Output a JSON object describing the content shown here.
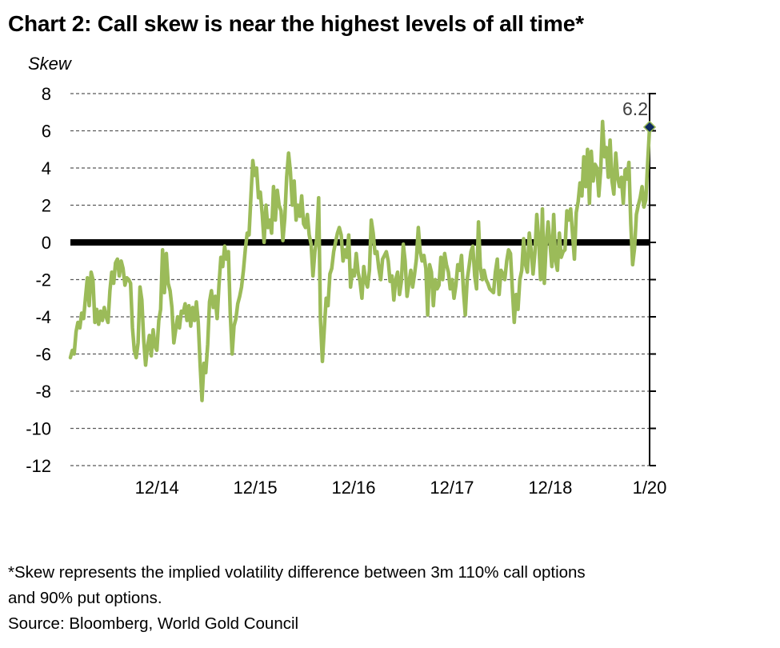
{
  "title": "Chart 2: Call skew is near the highest levels of all time*",
  "footnote_line1": "*Skew represents the implied volatility difference between 3m 110% call options",
  "footnote_line2": "and 90% put options.",
  "source": "Source: Bloomberg, World Gold Council",
  "colors": {
    "series": "#9bbb59",
    "zero_line": "#000000",
    "grid": "#595959",
    "marker": "#0f2a5f"
  },
  "chart_data": {
    "type": "line",
    "title": "Chart 2: Call skew is near the highest levels of all time*",
    "xlabel": "",
    "ylabel": "Skew",
    "ylim": [
      -12,
      8
    ],
    "yticks": [
      "8",
      "6",
      "4",
      "2",
      "0",
      "-2",
      "-4",
      "-6",
      "-8",
      "-10",
      "-12"
    ],
    "ytick_values": [
      8,
      6,
      4,
      2,
      0,
      -2,
      -4,
      -6,
      -8,
      -10,
      -12
    ],
    "xticks": [
      "12/14",
      "12/15",
      "12/16",
      "12/17",
      "12/18",
      "1/20"
    ],
    "xtick_values": [
      2014.92,
      2015.92,
      2016.92,
      2017.92,
      2018.92,
      2019.93
    ],
    "xlim": [
      2014.04,
      2019.93
    ],
    "grid": true,
    "annotation": {
      "label": "6.2",
      "x": 2019.93,
      "y": 6.2
    },
    "series": [
      {
        "name": "Skew",
        "x_start": 2014.04,
        "x_end": 2019.93,
        "values": [
          -6.2,
          -5.8,
          -6.0,
          -4.8,
          -4.3,
          -4.6,
          -3.8,
          -4.1,
          -3.0,
          -1.9,
          -3.4,
          -1.6,
          -2.0,
          -4.3,
          -3.6,
          -4.4,
          -3.7,
          -4.2,
          -3.5,
          -4.0,
          -4.3,
          -2.6,
          -1.6,
          -2.2,
          -1.1,
          -0.9,
          -1.8,
          -1.0,
          -1.4,
          -2.3,
          -1.9,
          -2.0,
          -2.2,
          -4.6,
          -5.8,
          -6.2,
          -5.4,
          -2.4,
          -3.1,
          -5.3,
          -6.6,
          -5.6,
          -5.0,
          -6.1,
          -4.7,
          -5.6,
          -5.8,
          -4.2,
          -3.6,
          -0.4,
          -2.7,
          -0.6,
          -2.2,
          -2.6,
          -3.5,
          -5.4,
          -4.7,
          -4.0,
          -4.6,
          -3.7,
          -3.8,
          -3.3,
          -4.2,
          -3.4,
          -4.5,
          -3.5,
          -4.2,
          -3.2,
          -4.3,
          -6.6,
          -8.5,
          -6.5,
          -7.0,
          -5.5,
          -3.2,
          -2.6,
          -3.5,
          -2.9,
          -4.1,
          -2.3,
          -0.8,
          -1.3,
          -0.2,
          -0.9,
          -0.5,
          -3.8,
          -6.0,
          -4.5,
          -4.1,
          -3.3,
          -2.9,
          -2.4,
          -1.5,
          -0.4,
          0.5,
          0.4,
          2.5,
          4.4,
          3.6,
          4.0,
          2.4,
          2.7,
          1.5,
          0.0,
          2.0,
          0.8,
          1.2,
          0.5,
          3.0,
          1.2,
          2.8,
          2.0,
          1.7,
          0.1,
          1.3,
          3.5,
          4.8,
          3.8,
          2.0,
          3.3,
          1.2,
          2.0,
          1.4,
          2.5,
          1.0,
          0.8,
          1.5,
          0.4,
          -0.1,
          -1.8,
          -0.5,
          0.2,
          2.4,
          -4.2,
          -6.4,
          -4.7,
          -3.0,
          -3.4,
          -1.7,
          -1.4,
          -0.5,
          0.0,
          0.5,
          0.8,
          0.4,
          -1.0,
          -0.4,
          -0.8,
          0.4,
          -2.4,
          -1.5,
          -1.8,
          -0.6,
          -1.6,
          -2.1,
          -3.0,
          -1.3,
          -2.1,
          -2.4,
          -1.5,
          1.2,
          0.5,
          -0.6,
          -0.5,
          -1.4,
          -2.0,
          -0.9,
          -0.7,
          -0.5,
          -1.0,
          -2.1,
          -1.8,
          -3.1,
          -2.0,
          -1.6,
          -2.8,
          -2.1,
          -0.1,
          -1.0,
          -2.9,
          -2.2,
          -1.5,
          -2.4,
          -1.7,
          -0.9,
          0.8,
          -0.5,
          -1.0,
          -0.7,
          -1.4,
          -3.9,
          -1.2,
          -1.6,
          -3.4,
          -2.0,
          -2.5,
          -2.3,
          -0.8,
          -2.0,
          -0.6,
          -1.2,
          -1.6,
          -2.5,
          -2.0,
          -3.0,
          -2.3,
          -1.2,
          -1.5,
          -0.7,
          -2.6,
          -3.9,
          -2.0,
          -1.3,
          -0.5,
          -0.2,
          -1.8,
          -2.5,
          1.1,
          -1.3,
          -2.0,
          -1.5,
          -2.0,
          -2.2,
          -2.5,
          -2.6,
          -2.7,
          -1.6,
          -0.9,
          -2.8,
          -1.5,
          -1.7,
          -2.0,
          -1.0,
          -0.4,
          -0.6,
          -2.5,
          -4.3,
          -2.8,
          -3.6,
          -2.0,
          -1.5,
          0.2,
          -1.2,
          -1.6,
          0.5,
          -0.4,
          -1.7,
          -0.6,
          1.5,
          0.2,
          -2.0,
          1.8,
          -2.2,
          -0.1,
          1.1,
          0.0,
          -1.3,
          1.5,
          -1.0,
          -1.5,
          0.5,
          -0.8,
          -0.5,
          -0.4,
          1.7,
          1.2,
          1.8,
          0.5,
          -0.9,
          1.6,
          2.2,
          3.2,
          2.5,
          4.6,
          3.0,
          5.0,
          2.1,
          4.9,
          3.3,
          4.2,
          4.0,
          2.5,
          3.9,
          6.5,
          4.6,
          5.1,
          3.5,
          5.5,
          3.3,
          2.6,
          4.8,
          3.5,
          3.0,
          3.5,
          2.1,
          3.9,
          3.4,
          4.3,
          1.0,
          -1.2,
          -0.3,
          1.5,
          2.0,
          2.4,
          3.0,
          1.9,
          2.3,
          4.3,
          6.2
        ]
      }
    ]
  }
}
